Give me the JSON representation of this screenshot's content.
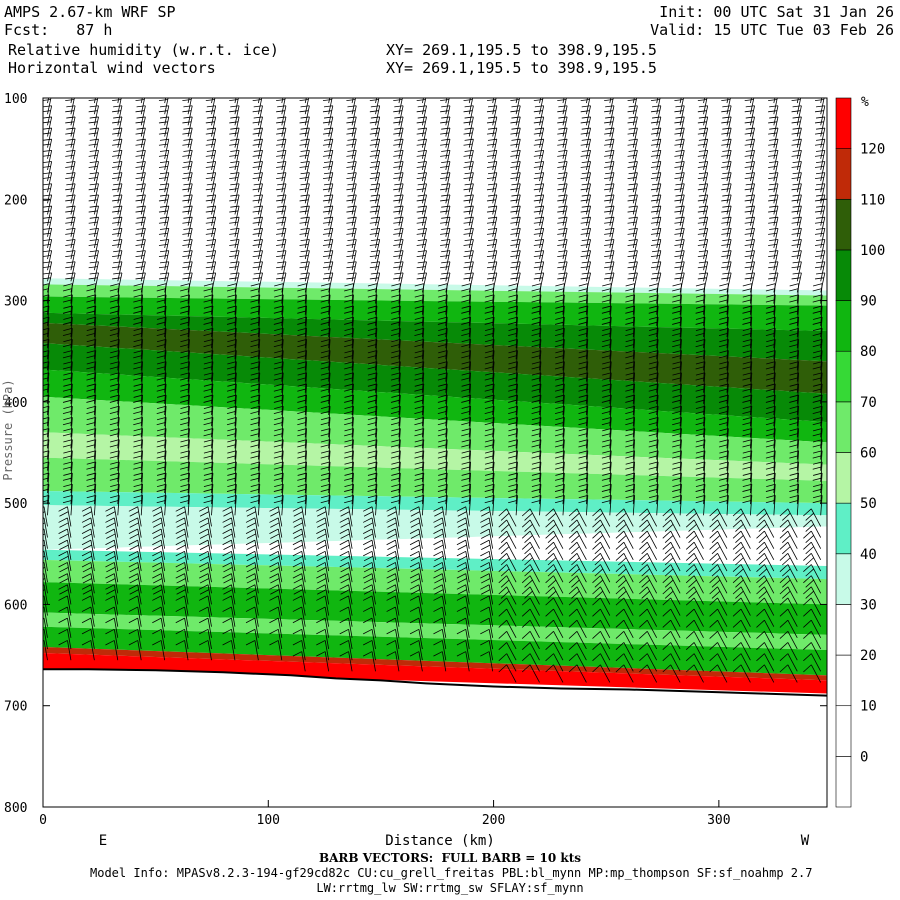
{
  "header": {
    "left_line1": "AMPS 2.67-km WRF SP",
    "left_line2": "Fcst:   87 h",
    "left_line3": "Relative humidity (w.r.t. ice)",
    "left_line4": "Horizontal wind vectors",
    "mid_line3": "XY= 269.1,195.5 to 398.9,195.5",
    "mid_line4": "XY= 269.1,195.5 to 398.9,195.5",
    "right_line1": "Init: 00 UTC Sat 31 Jan 26",
    "right_line2": "Valid: 15 UTC Tue 03 Feb 26"
  },
  "footer": {
    "barb_note": "BARB VECTORS:  FULL BARB = 10 kts",
    "model_info": "Model Info: MPASv8.2.3-194-gf29cd82c CU:cu_grell_freitas PBL:bl_mynn MP:mp_thompson SF:sf_noahmp 2.7",
    "model_info2": "LW:rrtmg_lw SW:rrtmg_sw SFLAY:sf_mynn"
  },
  "chart_data": {
    "type": "heatmap",
    "title": "Relative humidity (w.r.t. ice)",
    "xlabel": "Distance (km)",
    "ylabel": "Pressure (hPa)",
    "x_ticks": [
      0,
      100,
      200,
      300
    ],
    "y_ticks": [
      100,
      200,
      300,
      400,
      500,
      600,
      700,
      800
    ],
    "xlim": [
      0,
      348
    ],
    "ylim": [
      800,
      100
    ],
    "x_end_labels": {
      "left": "E",
      "right": "W"
    },
    "colorbar": {
      "unit": "%",
      "levels": [
        0,
        10,
        20,
        30,
        40,
        50,
        60,
        70,
        80,
        90,
        100,
        110,
        120
      ],
      "colors": [
        "#ffffff",
        "#ffffff",
        "#ffffff",
        "#ffffff",
        "#c8fae8",
        "#5fefc6",
        "#b5f5a5",
        "#6fea6a",
        "#36d936",
        "#10b610",
        "#078a07",
        "#2f5e08",
        "#c02a08",
        "#ff0000"
      ]
    },
    "bands": [
      {
        "name": "dry-upper",
        "value": 0,
        "left": [
          100,
          278
        ],
        "right": [
          100,
          290
        ]
      },
      {
        "name": "band-30",
        "value": 35,
        "left": [
          278,
          284
        ],
        "right": [
          290,
          295
        ]
      },
      {
        "name": "band-60",
        "value": 65,
        "left": [
          284,
          296
        ],
        "right": [
          295,
          305
        ]
      },
      {
        "name": "band-80",
        "value": 85,
        "left": [
          296,
          312
        ],
        "right": [
          305,
          330
        ]
      },
      {
        "name": "band-90-upper",
        "value": 95,
        "left": [
          312,
          322
        ],
        "right": [
          330,
          360
        ]
      },
      {
        "name": "band-100",
        "value": 105,
        "left": [
          322,
          342
        ],
        "right": [
          360,
          392
        ]
      },
      {
        "name": "band-90-lower",
        "value": 95,
        "left": [
          342,
          368
        ],
        "right": [
          392,
          420
        ]
      },
      {
        "name": "band-80-lower",
        "value": 85,
        "left": [
          368,
          395
        ],
        "right": [
          420,
          440
        ]
      },
      {
        "name": "band-60-a",
        "value": 65,
        "left": [
          395,
          430
        ],
        "right": [
          440,
          462
        ]
      },
      {
        "name": "band-50-a",
        "value": 55,
        "left": [
          430,
          455
        ],
        "right": [
          462,
          478
        ]
      },
      {
        "name": "band-60-b",
        "value": 65,
        "left": [
          455,
          488
        ],
        "right": [
          478,
          500
        ]
      },
      {
        "name": "band-40",
        "value": 45,
        "left": [
          488,
          502
        ],
        "right": [
          500,
          512
        ]
      },
      {
        "name": "band-30-b",
        "value": 35,
        "left": [
          502,
          546
        ],
        "right": [
          512,
          523
        ]
      },
      {
        "name": "dry-mid",
        "value": 20,
        "left": [
          546,
          546
        ],
        "right": [
          523,
          562
        ]
      },
      {
        "name": "band-40-b",
        "value": 45,
        "left": [
          546,
          556
        ],
        "right": [
          562,
          575
        ]
      },
      {
        "name": "band-60-c",
        "value": 65,
        "left": [
          556,
          578
        ],
        "right": [
          575,
          600
        ]
      },
      {
        "name": "band-80-c",
        "value": 85,
        "left": [
          578,
          608
        ],
        "right": [
          600,
          630
        ]
      },
      {
        "name": "band-60-d",
        "value": 65,
        "left": [
          608,
          622
        ],
        "right": [
          630,
          645
        ]
      },
      {
        "name": "band-80-d",
        "value": 85,
        "left": [
          622,
          642
        ],
        "right": [
          645,
          670
        ]
      },
      {
        "name": "band-110",
        "value": 115,
        "left": [
          642,
          648
        ],
        "right": [
          670,
          675
        ]
      },
      {
        "name": "band-120",
        "value": 125,
        "left": [
          648,
          664
        ],
        "right": [
          675,
          688
        ]
      }
    ],
    "terrain": {
      "x": [
        0,
        20,
        50,
        80,
        110,
        130,
        150,
        170,
        200,
        230,
        260,
        290,
        320,
        348
      ],
      "pressure": [
        664,
        664,
        665,
        667,
        670,
        673,
        675,
        678,
        681,
        683,
        684,
        686,
        688,
        690
      ]
    }
  }
}
